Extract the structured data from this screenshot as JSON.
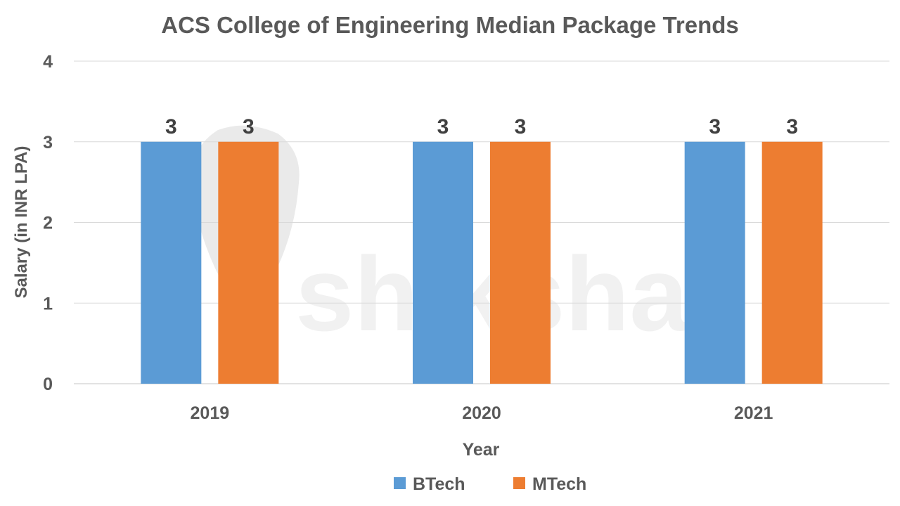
{
  "watermark": {
    "text": "shiksha",
    "color": "#e6e6e6"
  },
  "chart_data": {
    "type": "bar",
    "title": "ACS College of Engineering Median Package Trends",
    "xlabel": "Year",
    "ylabel": "Salary (in INR LPA)",
    "categories": [
      "2019",
      "2020",
      "2021"
    ],
    "ylim": [
      0,
      4
    ],
    "yticks": [
      0,
      1,
      2,
      3,
      4
    ],
    "grid": true,
    "legend_position": "bottom",
    "series": [
      {
        "name": "BTech",
        "values": [
          3,
          3,
          3
        ],
        "color": "#5b9bd5"
      },
      {
        "name": "MTech",
        "values": [
          3,
          3,
          3
        ],
        "color": "#ed7d31"
      }
    ],
    "data_labels": true
  }
}
